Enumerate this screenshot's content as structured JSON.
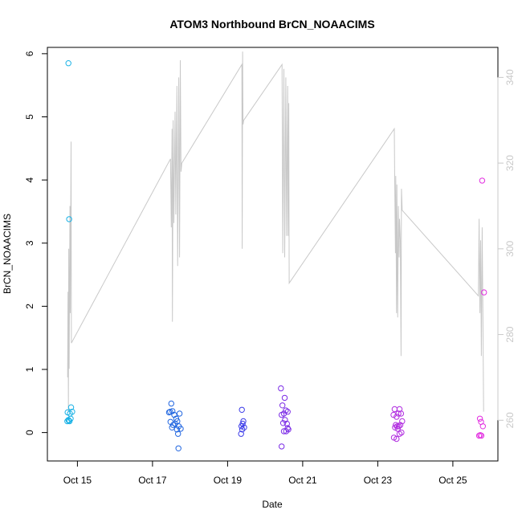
{
  "chart_data": {
    "type": "scatter",
    "title": "ATOM3 Northbound BrCN_NOAACIMS",
    "xlabel": "Date",
    "ylabel": "BrCN_NOAACIMS",
    "ylim": [
      -0.45,
      6.1
    ],
    "y2lim": [
      250.5,
      347
    ],
    "xlim": [
      14.2,
      26.2
    ],
    "grid": false,
    "y_ticks": [
      0,
      1,
      2,
      3,
      4,
      5,
      6
    ],
    "y2_ticks": [
      260,
      280,
      300,
      320,
      340
    ],
    "x_ticks": [
      {
        "value": 15,
        "label": "Oct 15"
      },
      {
        "value": 17,
        "label": "Oct 17"
      },
      {
        "value": 19,
        "label": "Oct 19"
      },
      {
        "value": 21,
        "label": "Oct 21"
      },
      {
        "value": 23,
        "label": "Oct 23"
      },
      {
        "value": 25,
        "label": "Oct 25"
      }
    ],
    "series": [
      {
        "color": "#1ab2e6",
        "points": [
          [
            14.76,
            5.85
          ],
          [
            14.78,
            3.38
          ],
          [
            14.83,
            0.4
          ],
          [
            14.74,
            0.32
          ],
          [
            14.8,
            0.3
          ],
          [
            14.76,
            0.2
          ],
          [
            14.79,
            0.18
          ],
          [
            14.73,
            0.18
          ],
          [
            14.82,
            0.22
          ],
          [
            14.86,
            0.33
          ],
          [
            14.77,
            0.19
          ]
        ]
      },
      {
        "color": "#2166e0",
        "points": [
          [
            17.5,
            0.46
          ],
          [
            17.47,
            0.33
          ],
          [
            17.53,
            0.34
          ],
          [
            17.44,
            0.32
          ],
          [
            17.58,
            0.28
          ],
          [
            17.72,
            0.3
          ],
          [
            17.48,
            0.17
          ],
          [
            17.55,
            0.12
          ],
          [
            17.63,
            0.22
          ],
          [
            17.66,
            0.18
          ],
          [
            17.7,
            0.1
          ],
          [
            17.6,
            0.14
          ],
          [
            17.52,
            0.08
          ],
          [
            17.65,
            0.05
          ],
          [
            17.75,
            0.06
          ],
          [
            17.68,
            -0.02
          ],
          [
            17.69,
            -0.25
          ]
        ]
      },
      {
        "color": "#3a3ae8",
        "points": [
          [
            19.38,
            0.36
          ],
          [
            19.42,
            0.18
          ],
          [
            19.4,
            0.14
          ],
          [
            19.37,
            0.1
          ],
          [
            19.44,
            0.08
          ],
          [
            19.39,
            0.05
          ],
          [
            19.36,
            -0.02
          ]
        ]
      },
      {
        "color": "#7c2ce6",
        "points": [
          [
            20.42,
            0.7
          ],
          [
            20.52,
            0.55
          ],
          [
            20.46,
            0.43
          ],
          [
            20.55,
            0.35
          ],
          [
            20.6,
            0.33
          ],
          [
            20.44,
            0.28
          ],
          [
            20.5,
            0.3
          ],
          [
            20.53,
            0.2
          ],
          [
            20.48,
            0.15
          ],
          [
            20.58,
            0.14
          ],
          [
            20.62,
            0.05
          ],
          [
            20.5,
            0.02
          ],
          [
            20.56,
            0.02
          ],
          [
            20.44,
            -0.22
          ],
          [
            20.6,
            0.07
          ]
        ]
      },
      {
        "color": "#b12ee0",
        "points": [
          [
            23.45,
            0.37
          ],
          [
            23.58,
            0.37
          ],
          [
            23.62,
            0.3
          ],
          [
            23.55,
            0.3
          ],
          [
            23.42,
            0.28
          ],
          [
            23.5,
            0.25
          ],
          [
            23.65,
            0.18
          ],
          [
            23.48,
            0.12
          ],
          [
            23.52,
            0.1
          ],
          [
            23.56,
            0.1
          ],
          [
            23.6,
            0.12
          ],
          [
            23.46,
            0.08
          ],
          [
            23.53,
            0.06
          ],
          [
            23.63,
            0.0
          ],
          [
            23.58,
            -0.02
          ],
          [
            23.43,
            -0.08
          ],
          [
            23.5,
            -0.1
          ]
        ]
      },
      {
        "color": "#e22ee0",
        "points": [
          [
            25.78,
            3.99
          ],
          [
            25.83,
            2.22
          ],
          [
            25.72,
            0.22
          ],
          [
            25.75,
            0.17
          ],
          [
            25.8,
            0.1
          ],
          [
            25.7,
            -0.05
          ],
          [
            25.76,
            -0.05
          ],
          [
            25.73,
            -0.04
          ]
        ]
      }
    ],
    "secondary_line": {
      "color": "#c8c8c8",
      "points": [
        [
          14.74,
          270
        ],
        [
          14.75,
          290
        ],
        [
          14.76,
          262
        ],
        [
          14.77,
          300
        ],
        [
          14.78,
          272
        ],
        [
          14.8,
          310
        ],
        [
          14.81,
          285
        ],
        [
          14.83,
          325
        ],
        [
          14.84,
          278
        ],
        [
          17.48,
          321
        ],
        [
          17.5,
          305
        ],
        [
          17.52,
          328
        ],
        [
          17.53,
          283
        ],
        [
          17.55,
          330
        ],
        [
          17.57,
          306
        ],
        [
          17.6,
          332
        ],
        [
          17.62,
          308
        ],
        [
          17.65,
          338
        ],
        [
          17.67,
          296
        ],
        [
          17.7,
          340
        ],
        [
          17.72,
          298
        ],
        [
          17.74,
          344
        ],
        [
          17.76,
          318
        ],
        [
          17.78,
          320
        ],
        [
          19.38,
          343
        ],
        [
          19.39,
          300
        ],
        [
          19.4,
          346
        ],
        [
          19.41,
          329
        ],
        [
          19.43,
          330
        ],
        [
          20.45,
          343
        ],
        [
          20.47,
          299
        ],
        [
          20.5,
          342
        ],
        [
          20.52,
          298
        ],
        [
          20.55,
          340
        ],
        [
          20.57,
          303
        ],
        [
          20.6,
          338
        ],
        [
          20.61,
          303
        ],
        [
          20.63,
          334
        ],
        [
          20.64,
          292
        ],
        [
          23.44,
          328
        ],
        [
          23.45,
          318
        ],
        [
          23.47,
          299
        ],
        [
          23.48,
          317
        ],
        [
          23.5,
          285
        ],
        [
          23.51,
          315
        ],
        [
          23.53,
          284
        ],
        [
          23.55,
          310
        ],
        [
          23.57,
          298
        ],
        [
          23.58,
          307
        ],
        [
          23.6,
          302
        ],
        [
          23.62,
          275
        ],
        [
          23.63,
          314
        ],
        [
          23.65,
          309
        ],
        [
          25.68,
          289
        ],
        [
          25.7,
          307
        ],
        [
          25.72,
          285
        ],
        [
          25.74,
          302
        ],
        [
          25.76,
          275
        ],
        [
          25.78,
          305
        ],
        [
          25.8,
          285
        ],
        [
          25.82,
          262
        ]
      ]
    }
  }
}
